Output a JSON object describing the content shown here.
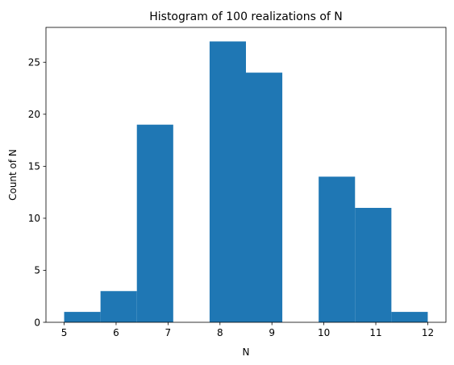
{
  "chart_data": {
    "type": "bar",
    "title": "Histogram of 100 realizations of N",
    "xlabel": "N",
    "ylabel": "Count of N",
    "bin_edges": [
      5.0,
      5.7,
      6.4,
      7.1,
      7.8,
      8.5,
      9.2,
      9.9,
      10.6,
      11.3,
      12.0
    ],
    "values": [
      1,
      3,
      19,
      0,
      27,
      24,
      0,
      14,
      11,
      1
    ],
    "xlim": [
      4.65,
      12.35
    ],
    "ylim": [
      0,
      28.35
    ],
    "xticks": [
      5,
      6,
      7,
      8,
      9,
      10,
      11,
      12
    ],
    "yticks": [
      0,
      5,
      10,
      15,
      20,
      25
    ],
    "bar_color": "#1f77b4",
    "grid": false
  }
}
